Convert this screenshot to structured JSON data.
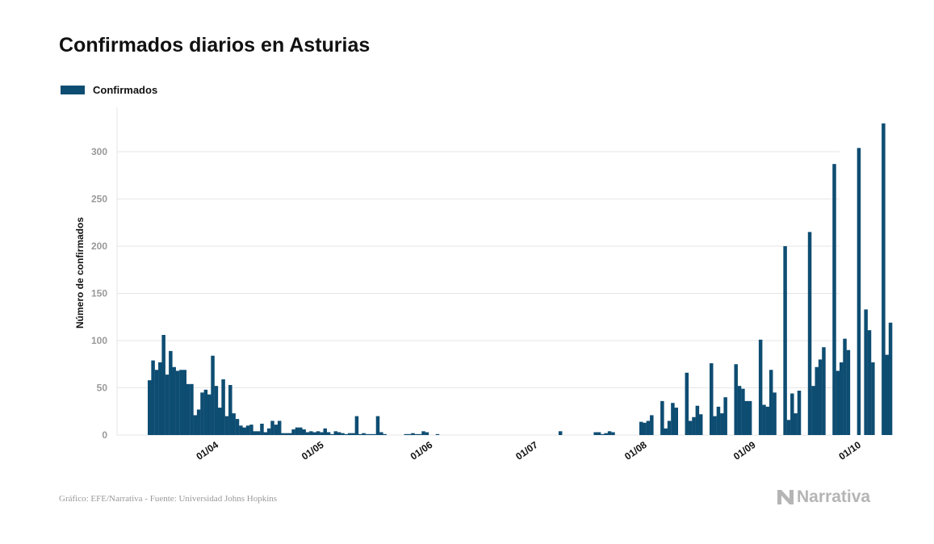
{
  "title": "Confirmados diarios en Asturias",
  "legend": {
    "label": "Confirmados"
  },
  "colors": {
    "bar": "#0e4d72",
    "grid": "#e6e6e6",
    "tick": "#999999",
    "text": "#111111"
  },
  "source": "Gráfico: EFE/Narrativa - Fuente: Universidad Johns Hopkins",
  "brand": {
    "name": "Narrativa",
    "icon": "narrativa-logo-icon"
  },
  "chart_data": {
    "type": "bar",
    "ylabel": "Número de confirmados",
    "ylim": [
      0,
      330
    ],
    "yticks": [
      0,
      50,
      100,
      150,
      200,
      250,
      300
    ],
    "xlabels": [
      "01/04",
      "01/05",
      "01/06",
      "01/07",
      "01/08",
      "01/09",
      "01/10"
    ],
    "x_range": [
      "2020-03-14",
      "2020-10-13"
    ],
    "series": [
      {
        "name": "Confirmados",
        "dates": [
          "2020-03-14",
          "2020-03-15",
          "2020-03-16",
          "2020-03-17",
          "2020-03-18",
          "2020-03-19",
          "2020-03-20",
          "2020-03-21",
          "2020-03-22",
          "2020-03-23",
          "2020-03-24",
          "2020-03-25",
          "2020-03-26",
          "2020-03-27",
          "2020-03-28",
          "2020-03-29",
          "2020-03-30",
          "2020-03-31",
          "2020-04-01",
          "2020-04-02",
          "2020-04-03",
          "2020-04-04",
          "2020-04-05",
          "2020-04-06",
          "2020-04-07",
          "2020-04-08",
          "2020-04-09",
          "2020-04-10",
          "2020-04-11",
          "2020-04-12",
          "2020-04-13",
          "2020-04-14",
          "2020-04-15",
          "2020-04-16",
          "2020-04-17",
          "2020-04-18",
          "2020-04-19",
          "2020-04-20",
          "2020-04-21",
          "2020-04-22",
          "2020-04-23",
          "2020-04-24",
          "2020-04-25",
          "2020-04-26",
          "2020-04-27",
          "2020-04-28",
          "2020-04-29",
          "2020-04-30",
          "2020-05-01",
          "2020-05-02",
          "2020-05-03",
          "2020-05-04",
          "2020-05-05",
          "2020-05-06",
          "2020-05-07",
          "2020-05-08",
          "2020-05-09",
          "2020-05-10",
          "2020-05-11",
          "2020-05-12",
          "2020-05-13",
          "2020-05-14",
          "2020-05-15",
          "2020-05-16",
          "2020-05-17",
          "2020-05-18",
          "2020-05-19",
          "2020-05-20",
          "2020-05-21",
          "2020-05-22",
          "2020-05-23",
          "2020-05-24",
          "2020-05-25",
          "2020-05-26",
          "2020-05-27",
          "2020-05-28",
          "2020-05-29",
          "2020-05-30",
          "2020-05-31",
          "2020-06-01",
          "2020-06-02",
          "2020-06-03",
          "2020-06-04",
          "2020-06-05",
          "2020-06-06",
          "2020-06-07",
          "2020-06-08",
          "2020-06-09",
          "2020-06-10",
          "2020-06-11",
          "2020-06-12",
          "2020-06-13",
          "2020-06-14",
          "2020-06-15",
          "2020-06-16",
          "2020-06-17",
          "2020-06-18",
          "2020-06-19",
          "2020-06-20",
          "2020-06-21",
          "2020-06-22",
          "2020-06-23",
          "2020-06-24",
          "2020-06-25",
          "2020-06-26",
          "2020-06-27",
          "2020-06-28",
          "2020-06-29",
          "2020-06-30",
          "2020-07-01",
          "2020-07-02",
          "2020-07-03",
          "2020-07-04",
          "2020-07-05",
          "2020-07-06",
          "2020-07-07",
          "2020-07-08",
          "2020-07-09",
          "2020-07-10",
          "2020-07-11",
          "2020-07-12",
          "2020-07-13",
          "2020-07-14",
          "2020-07-15",
          "2020-07-16",
          "2020-07-17",
          "2020-07-18",
          "2020-07-19",
          "2020-07-20",
          "2020-07-21",
          "2020-07-22",
          "2020-07-23",
          "2020-07-24",
          "2020-07-25",
          "2020-07-26",
          "2020-07-27",
          "2020-07-28",
          "2020-07-29",
          "2020-07-30",
          "2020-07-31",
          "2020-08-01",
          "2020-08-02",
          "2020-08-03",
          "2020-08-04",
          "2020-08-05",
          "2020-08-06",
          "2020-08-07",
          "2020-08-08",
          "2020-08-09",
          "2020-08-10",
          "2020-08-11",
          "2020-08-12",
          "2020-08-13",
          "2020-08-14",
          "2020-08-15",
          "2020-08-16",
          "2020-08-17",
          "2020-08-18",
          "2020-08-19",
          "2020-08-20",
          "2020-08-21",
          "2020-08-22",
          "2020-08-23",
          "2020-08-24",
          "2020-08-25",
          "2020-08-26",
          "2020-08-27",
          "2020-08-28",
          "2020-08-29",
          "2020-08-30",
          "2020-08-31",
          "2020-09-01",
          "2020-09-02",
          "2020-09-03",
          "2020-09-04",
          "2020-09-05",
          "2020-09-06",
          "2020-09-07",
          "2020-09-08",
          "2020-09-09",
          "2020-09-10",
          "2020-09-11",
          "2020-09-12",
          "2020-09-13",
          "2020-09-14",
          "2020-09-15",
          "2020-09-16",
          "2020-09-17",
          "2020-09-18",
          "2020-09-19",
          "2020-09-20",
          "2020-09-21",
          "2020-09-22",
          "2020-09-23",
          "2020-09-24",
          "2020-09-25",
          "2020-09-26",
          "2020-09-27",
          "2020-09-28",
          "2020-09-29",
          "2020-09-30",
          "2020-10-01",
          "2020-10-02",
          "2020-10-03",
          "2020-10-04",
          "2020-10-05",
          "2020-10-06",
          "2020-10-07",
          "2020-10-08",
          "2020-10-09",
          "2020-10-10",
          "2020-10-11",
          "2020-10-12"
        ],
        "values": [
          58,
          79,
          69,
          77,
          106,
          64,
          89,
          72,
          68,
          69,
          69,
          54,
          54,
          21,
          27,
          45,
          48,
          43,
          84,
          52,
          29,
          59,
          20,
          53,
          23,
          17,
          10,
          8,
          10,
          11,
          4,
          4,
          12,
          3,
          7,
          15,
          11,
          15,
          2,
          2,
          2,
          6,
          8,
          8,
          6,
          3,
          4,
          3,
          4,
          3,
          7,
          3,
          1,
          4,
          3,
          2,
          1,
          2,
          2,
          20,
          1,
          2,
          1,
          1,
          1,
          20,
          3,
          1,
          0,
          0,
          0,
          0,
          0,
          1,
          1,
          2,
          1,
          1,
          4,
          3,
          0,
          0,
          1,
          0,
          0,
          0,
          0,
          0,
          0,
          0,
          0,
          0,
          0,
          0,
          0,
          0,
          0,
          0,
          0,
          0,
          0,
          0,
          0,
          0,
          0,
          0,
          0,
          0,
          0,
          0,
          0,
          0,
          0,
          0,
          0,
          0,
          0,
          4,
          0,
          0,
          0,
          0,
          0,
          0,
          0,
          0,
          0,
          3,
          3,
          1,
          2,
          4,
          3,
          0,
          0,
          0,
          0,
          0,
          0,
          0,
          14,
          13,
          15,
          21,
          0,
          0,
          36,
          7,
          15,
          34,
          29,
          0,
          0,
          66,
          15,
          19,
          31,
          22,
          0,
          0,
          76,
          20,
          30,
          23,
          40,
          0,
          0,
          75,
          52,
          49,
          36,
          36,
          0,
          0,
          101,
          32,
          30,
          69,
          45,
          0,
          0,
          200,
          16,
          44,
          23,
          47,
          0,
          0,
          215,
          52,
          72,
          80,
          93,
          0,
          0,
          287,
          68,
          77,
          102,
          90,
          0,
          0,
          304,
          0,
          133,
          111,
          77,
          0,
          0,
          330,
          85,
          119,
          0
        ]
      }
    ]
  }
}
